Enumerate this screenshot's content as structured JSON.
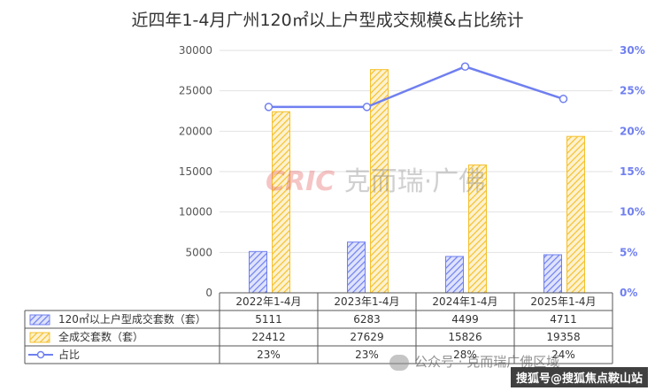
{
  "chart_data": {
    "type": "bar",
    "title": "近四年1-4月广州120㎡以上户型成交规模&占比统计",
    "categories": [
      "2022年1-4月",
      "2023年1-4月",
      "2024年1-4月",
      "2025年1-4月"
    ],
    "series": [
      {
        "name": "120㎡以上户型成交套数（套）",
        "type": "bar",
        "axis": "left",
        "color": "#6f7ff0",
        "values": [
          5111,
          6283,
          4499,
          4711
        ],
        "labels": [
          "5111",
          "6283",
          "4499",
          "4711"
        ]
      },
      {
        "name": "全成交套数（套）",
        "type": "bar",
        "axis": "left",
        "color": "#f5c02c",
        "values": [
          22412,
          27629,
          15826,
          19358
        ],
        "labels": [
          "22412",
          "27629",
          "15826",
          "19358"
        ]
      },
      {
        "name": "占比",
        "type": "line",
        "axis": "right",
        "color": "#6f7ff0",
        "values": [
          23,
          23,
          28,
          24
        ],
        "labels": [
          "23%",
          "23%",
          "28%",
          "24%"
        ]
      }
    ],
    "y_left": {
      "min": 0,
      "max": 30000,
      "step": 5000,
      "ticks": [
        "0",
        "5000",
        "10000",
        "15000",
        "20000",
        "25000",
        "30000"
      ]
    },
    "y_right": {
      "min": 0,
      "max": 30,
      "step": 5,
      "ticks": [
        "0%",
        "5%",
        "10%",
        "15%",
        "20%",
        "25%",
        "30%"
      ]
    },
    "grid": true,
    "legend": "data-table"
  },
  "watermarks": {
    "brand": "CRIC",
    "brand_cn": "克而瑞·广佛",
    "account": "公众号 · 克而瑞广佛区域",
    "site": "搜狐号@搜狐焦点鞍山站"
  }
}
